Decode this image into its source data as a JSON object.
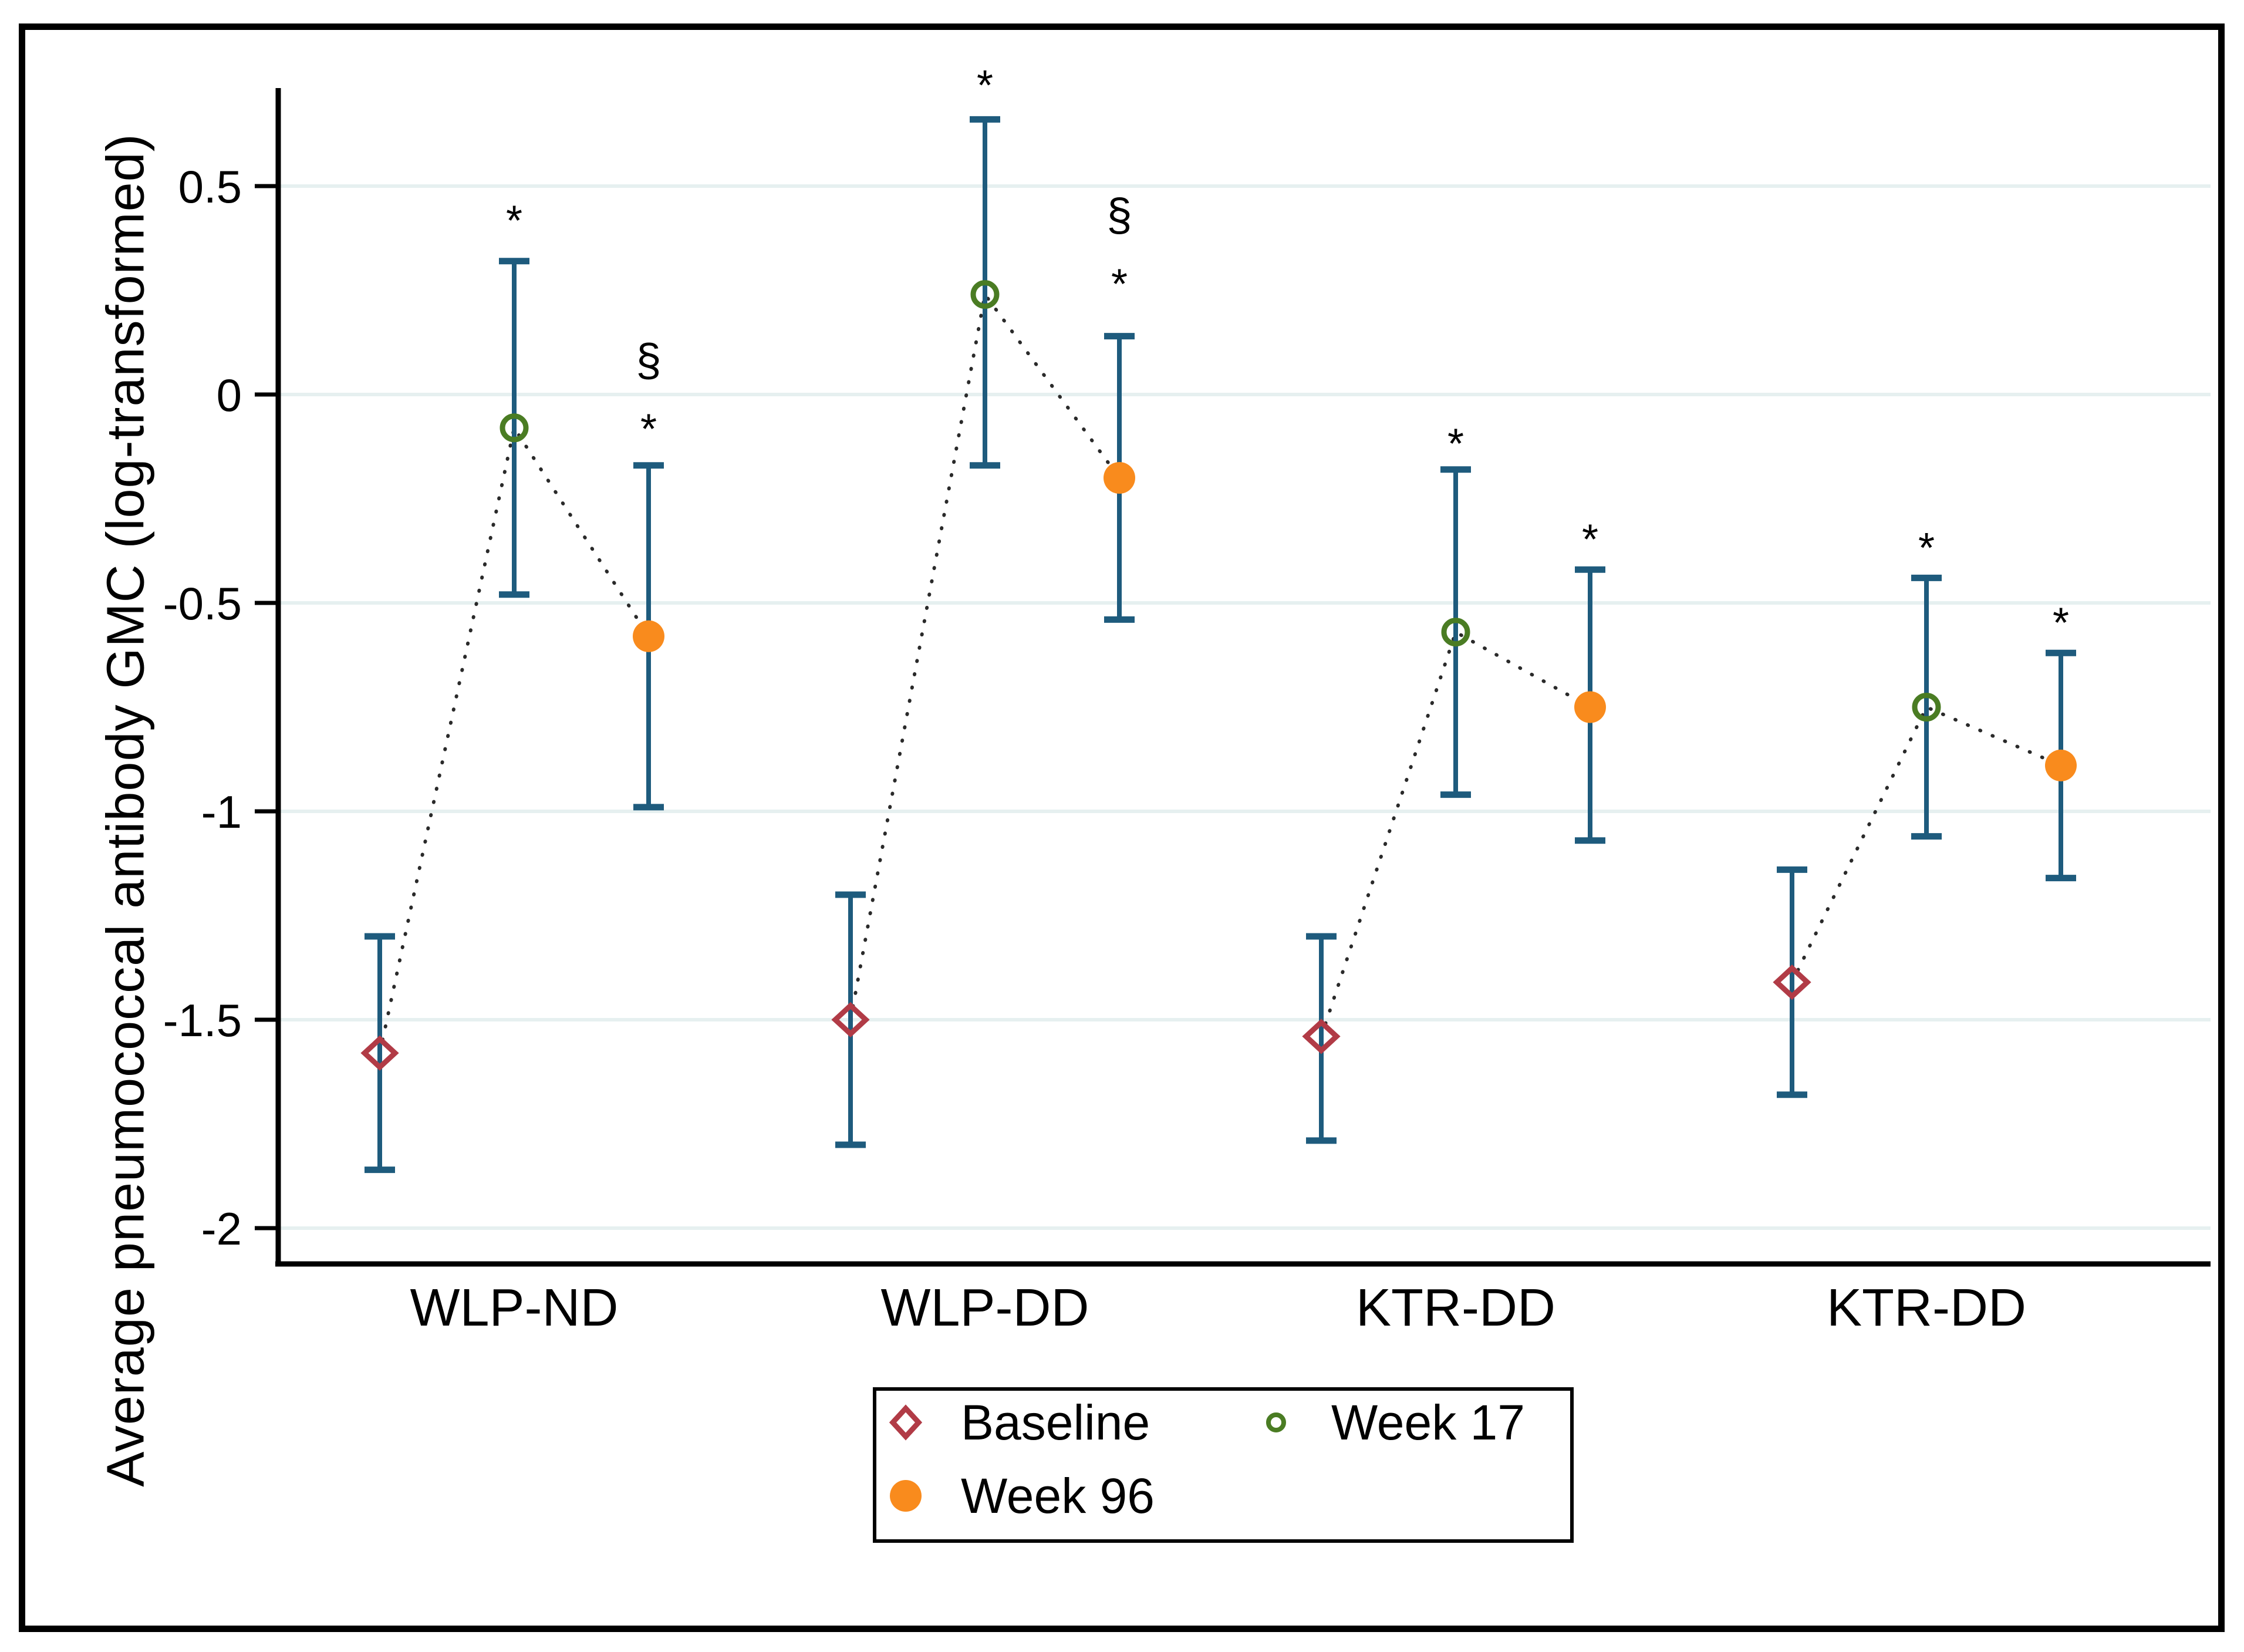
{
  "figure": {
    "background": "#ffffff",
    "border_color": "#000000"
  },
  "chart_data": {
    "type": "scatter",
    "title": "",
    "ylabel": "Average pneumococcal antibody GMC (log-transformed)",
    "xlabel": "",
    "categories": [
      "WLP-ND",
      "WLP-DD",
      "KTR-DD",
      "KTR-DD"
    ],
    "ylim": [
      -2.09,
      0.74
    ],
    "yticks": [
      0.5,
      0,
      -0.5,
      -1,
      -1.5,
      -2
    ],
    "ytick_labels": [
      "0.5",
      "0",
      "-0.5",
      "-1",
      "-1.5",
      "-2"
    ],
    "grid": true,
    "legend_position": "bottom-center",
    "colors": {
      "errorbar": "#1e5b7d",
      "grid": "#e6f0f0",
      "axis": "#000000",
      "connector": "#2a2a2a",
      "text": "#000000"
    },
    "series": [
      {
        "name": "Baseline",
        "marker": "open-diamond",
        "color": "#b13b46",
        "points": [
          {
            "category": "WLP-ND",
            "y": -1.58,
            "ci_low": -1.86,
            "ci_high": -1.3
          },
          {
            "category": "WLP-DD",
            "y": -1.5,
            "ci_low": -1.8,
            "ci_high": -1.2
          },
          {
            "category": "KTR-DD",
            "y": -1.54,
            "ci_low": -1.79,
            "ci_high": -1.3
          },
          {
            "category": "KTR-DD",
            "y": -1.41,
            "ci_low": -1.68,
            "ci_high": -1.14
          }
        ]
      },
      {
        "name": "Week 17",
        "marker": "open-circle",
        "color": "#4a7c23",
        "points": [
          {
            "category": "WLP-ND",
            "y": -0.08,
            "ci_low": -0.48,
            "ci_high": 0.32
          },
          {
            "category": "WLP-DD",
            "y": 0.24,
            "ci_low": -0.17,
            "ci_high": 0.66
          },
          {
            "category": "KTR-DD",
            "y": -0.57,
            "ci_low": -0.96,
            "ci_high": -0.18
          },
          {
            "category": "KTR-DD",
            "y": -0.75,
            "ci_low": -1.06,
            "ci_high": -0.44
          }
        ]
      },
      {
        "name": "Week 96",
        "marker": "filled-circle",
        "color": "#f98b1d",
        "points": [
          {
            "category": "WLP-ND",
            "y": -0.58,
            "ci_low": -0.99,
            "ci_high": -0.17
          },
          {
            "category": "WLP-DD",
            "y": -0.2,
            "ci_low": -0.54,
            "ci_high": 0.14
          },
          {
            "category": "KTR-DD",
            "y": -0.75,
            "ci_low": -1.07,
            "ci_high": -0.42
          },
          {
            "category": "KTR-DD",
            "y": -0.89,
            "ci_low": -1.16,
            "ci_high": -0.62
          }
        ]
      }
    ],
    "annotations": [
      {
        "group": 0,
        "series": 1,
        "text": "*",
        "y": 0.435
      },
      {
        "group": 0,
        "series": 2,
        "text": "§",
        "y": 0.075
      },
      {
        "group": 0,
        "series": 2,
        "text": "*",
        "y": -0.065
      },
      {
        "group": 1,
        "series": 1,
        "text": "*",
        "y": 0.76
      },
      {
        "group": 1,
        "series": 2,
        "text": "§",
        "y": 0.424
      },
      {
        "group": 1,
        "series": 2,
        "text": "*",
        "y": 0.283
      },
      {
        "group": 2,
        "series": 1,
        "text": "*",
        "y": -0.1
      },
      {
        "group": 2,
        "series": 2,
        "text": "*",
        "y": -0.33
      },
      {
        "group": 3,
        "series": 1,
        "text": "*",
        "y": -0.35
      },
      {
        "group": 3,
        "series": 2,
        "text": "*",
        "y": -0.53
      }
    ]
  }
}
